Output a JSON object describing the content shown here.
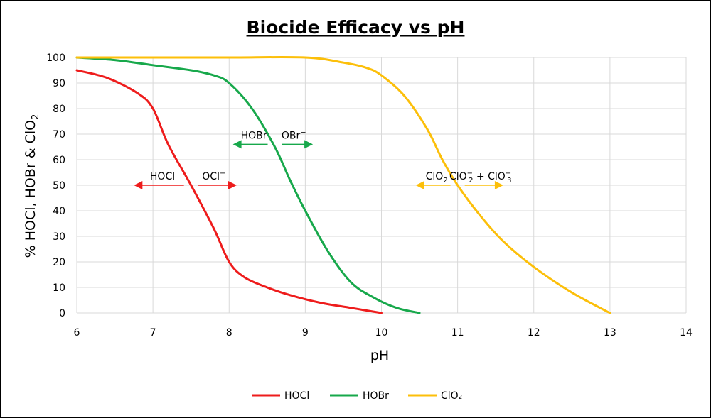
{
  "chart_data": {
    "type": "line",
    "title": "Biocide Efficacy vs pH",
    "xlabel": "pH",
    "ylabel": "% HOCl, HOBr & ClO",
    "ylabel_sub": "2",
    "xlim": [
      6,
      14
    ],
    "ylim": [
      0,
      100
    ],
    "x_ticks": [
      6,
      7,
      8,
      9,
      10,
      11,
      12,
      13,
      14
    ],
    "y_ticks": [
      0,
      10,
      20,
      30,
      40,
      50,
      60,
      70,
      80,
      90,
      100
    ],
    "grid": true,
    "legend_position": "bottom",
    "series": [
      {
        "name": "HOCl",
        "color": "#ee1c1c",
        "x": [
          6.0,
          6.4,
          6.8,
          7.0,
          7.2,
          7.5,
          7.8,
          8.0,
          8.2,
          8.5,
          8.8,
          9.2,
          9.6,
          10.0
        ],
        "y": [
          95,
          92,
          86,
          80,
          66,
          50,
          33,
          20,
          14,
          10,
          7,
          4,
          2,
          0
        ]
      },
      {
        "name": "HOBr",
        "color": "#17a84b",
        "x": [
          6.0,
          6.5,
          7.0,
          7.5,
          7.8,
          8.0,
          8.3,
          8.6,
          8.8,
          9.0,
          9.3,
          9.6,
          9.9,
          10.2,
          10.5
        ],
        "y": [
          100,
          99,
          97,
          95,
          93,
          90,
          80,
          65,
          52,
          40,
          24,
          12,
          6,
          2,
          0
        ]
      },
      {
        "name": "ClO₂",
        "color": "#fcbf0a",
        "x": [
          6.0,
          7.0,
          8.0,
          9.0,
          9.5,
          9.8,
          10.0,
          10.3,
          10.6,
          10.8,
          11.0,
          11.3,
          11.6,
          12.0,
          12.5,
          13.0
        ],
        "y": [
          100,
          100,
          100,
          100,
          98,
          96,
          93,
          85,
          72,
          60,
          50,
          38,
          28,
          18,
          8,
          0
        ]
      }
    ],
    "annotations": [
      {
        "name": "hocl",
        "left": "HOCl",
        "right": "OCl",
        "right_sup": "−",
        "x": 7.5,
        "y": 50,
        "x_from": 6.75,
        "x_to": 8.1,
        "color": "#ee1c1c"
      },
      {
        "name": "hobr",
        "left": "HOBr",
        "right": "OBr",
        "right_sup": "−",
        "x": 8.6,
        "y": 66,
        "x_from": 8.05,
        "x_to": 9.1,
        "color": "#17a84b"
      },
      {
        "name": "clo2",
        "left": "ClO",
        "left_sub": "2",
        "right": "ClO",
        "right_sup": "−",
        "right_sub": "2",
        "right_mid": " + ClO",
        "right_sup2": "−",
        "right_sub2": "3",
        "x": 11.0,
        "y": 50,
        "x_from": 10.45,
        "x_to": 11.6,
        "color": "#fcbf0a"
      }
    ]
  }
}
